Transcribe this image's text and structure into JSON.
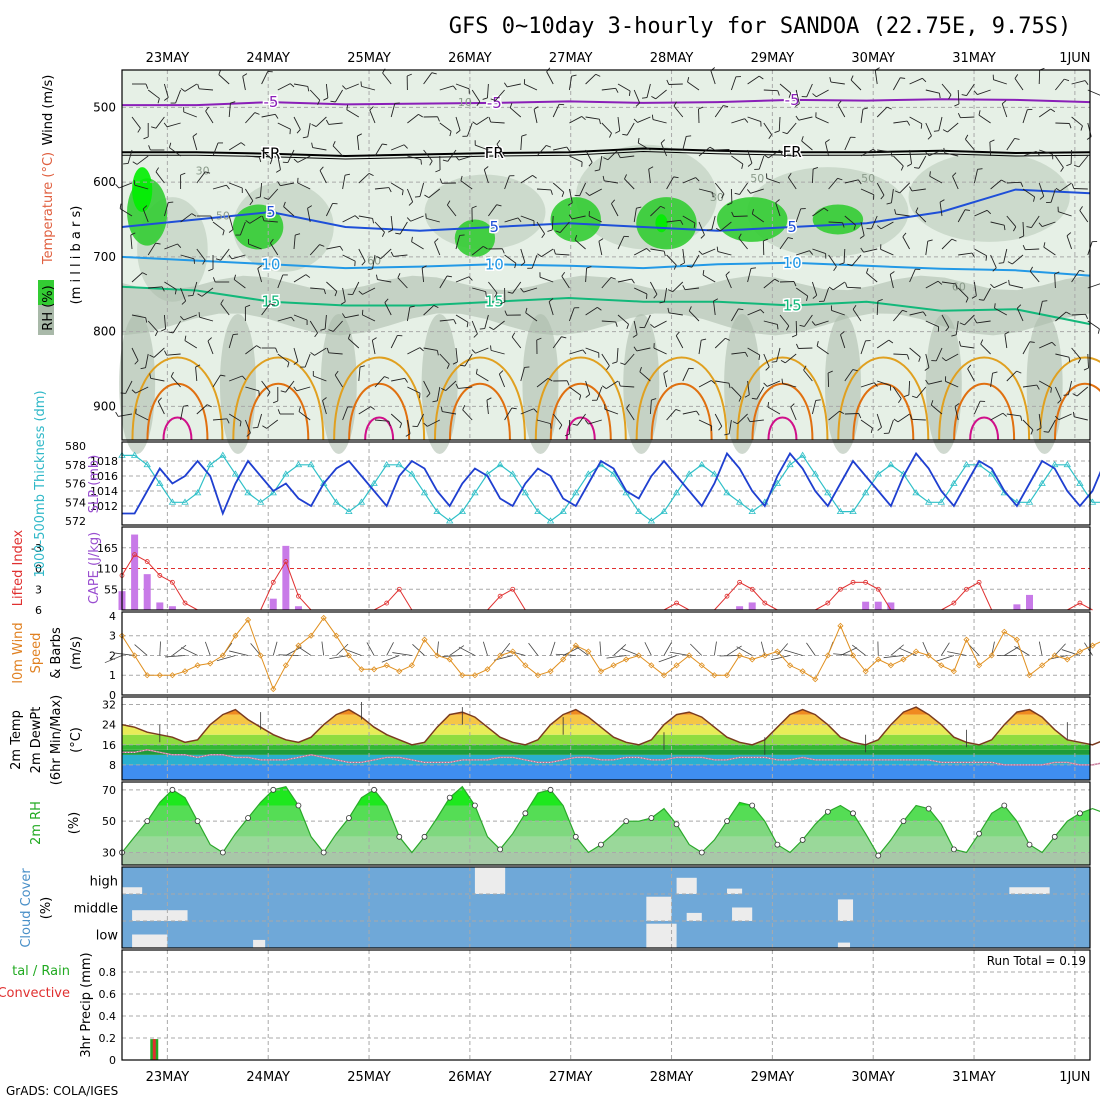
{
  "title": "GFS 0~10day 3-hourly for SANDOA (22.75E, 9.75S)",
  "credit": "GrADS: COLA/IGES",
  "colors": {
    "frame": "#000000",
    "grid": "#a9a9a9",
    "rh_dark": "#a9b9a9",
    "rh_mid": "#c9d7c9",
    "rh_light": "#e6f0e6",
    "rh_green": "#33cc33",
    "rh_bright": "#00ee00",
    "t_neg5": "#8a1fb8",
    "t_fr": "#000000",
    "t_5": "#1e4fd8",
    "t_10": "#2399e6",
    "t_15": "#12b87a",
    "t_20": "#e0a020",
    "t_25": "#e07010",
    "t_30": "#d0108a",
    "slp": "#1f3fd0",
    "thick": "#30c0c8",
    "cape": "#c87ae8",
    "li": "#e03030",
    "wind10": "#e09020",
    "temp_line": "#7a3b1f",
    "dew_line": "#c87a9a",
    "rh_line": "#2aa82a",
    "cloud": "#6fa8d8",
    "precip_total": "#22aa22",
    "precip_conv": "#e03030",
    "lbl_wind": "#000000",
    "lbl_temp": "#e06040",
    "lbl_rh": "#22aa22",
    "lbl_purple": "#9a4fd0",
    "lbl_cyan": "#30b8c8",
    "lbl_orange": "#e08020",
    "lbl_red": "#e03030",
    "lbl_green": "#22aa22",
    "lbl_blue": "#4a90c8"
  },
  "chart_data": {
    "type": "meteogram",
    "dates_top": [
      "23MAY",
      "24MAY",
      "25MAY",
      "26MAY",
      "27MAY",
      "28MAY",
      "29MAY",
      "30MAY",
      "31MAY",
      "1JUN"
    ],
    "dates_bottom": [
      "23MAY",
      "24MAY",
      "25MAY",
      "26MAY",
      "27MAY",
      "28MAY",
      "29MAY",
      "30MAY",
      "31MAY",
      "1JUN"
    ],
    "time_range_days": [
      0,
      9.6
    ],
    "date_positions_days": [
      0.45,
      1.45,
      2.45,
      3.45,
      4.45,
      5.45,
      6.45,
      7.45,
      8.45,
      9.45
    ],
    "cross_section": {
      "ylabel_parts": [
        "RH (%)",
        "Temperature (°C)",
        "Wind (m/s)"
      ],
      "ylabel_sub": "(m i l l i b a r s)",
      "pressure_ticks": [
        "500",
        "600",
        "700",
        "800",
        "900"
      ],
      "pressure_range": [
        450,
        945
      ],
      "contours": [
        {
          "label": "-5",
          "key": "t_neg5",
          "p": [
            497,
            497,
            493,
            496,
            495,
            494,
            492,
            494,
            493,
            490,
            491,
            489,
            490,
            493
          ]
        },
        {
          "label": "FR",
          "key": "t_fr",
          "p": [
            560,
            560,
            562,
            565,
            563,
            561,
            560,
            555,
            558,
            560,
            560,
            558,
            561,
            560
          ]
        },
        {
          "label": "5",
          "key": "t_5",
          "p": [
            660,
            650,
            640,
            660,
            665,
            660,
            655,
            660,
            665,
            660,
            655,
            640,
            610,
            615
          ]
        },
        {
          "label": "10",
          "key": "t_10",
          "p": [
            700,
            705,
            710,
            715,
            713,
            710,
            712,
            715,
            710,
            708,
            712,
            716,
            718,
            725
          ]
        },
        {
          "label": "15",
          "key": "t_15",
          "p": [
            740,
            745,
            760,
            765,
            765,
            760,
            755,
            760,
            760,
            765,
            760,
            772,
            770,
            790
          ]
        }
      ],
      "rh_labels": [
        "10",
        "30",
        "50",
        "60",
        "50",
        "30",
        "50",
        "60"
      ]
    },
    "slp_thickness": {
      "ylabel_left": "1000-500mb Thickness (dm)",
      "ylabel_right": "SLP (mb)",
      "thick_ticks": [
        "580",
        "578",
        "576",
        "574",
        "572"
      ],
      "slp_ticks": [
        "1018",
        "1016",
        "1014",
        "1012"
      ],
      "slp_range": [
        1010,
        1020
      ],
      "slp": [
        1011,
        1011,
        1014,
        1017,
        1015,
        1016,
        1018,
        1016,
        1011,
        1015,
        1018,
        1016,
        1014,
        1015,
        1013,
        1012,
        1015,
        1017,
        1018,
        1016,
        1014,
        1012,
        1016,
        1018,
        1017,
        1014,
        1012,
        1015,
        1017,
        1016,
        1013,
        1012,
        1015,
        1017,
        1016,
        1013,
        1012,
        1015,
        1018,
        1017,
        1014,
        1013,
        1016,
        1018,
        1016,
        1014,
        1012,
        1015,
        1019,
        1017,
        1014,
        1012,
        1016,
        1019,
        1017,
        1014,
        1012,
        1015,
        1018,
        1016,
        1014,
        1012,
        1016,
        1019,
        1017,
        1014,
        1012,
        1015,
        1018,
        1017,
        1014,
        1012,
        1015,
        1018,
        1017,
        1014,
        1012,
        1014,
        1018
      ],
      "thick": [
        579,
        579,
        578,
        576,
        574,
        574,
        575,
        578,
        579,
        577,
        575,
        574,
        575,
        577,
        578,
        578,
        576,
        574,
        573,
        574,
        576,
        578,
        578,
        577,
        575,
        573,
        572,
        573,
        575,
        577,
        578,
        577,
        575,
        573,
        572,
        573,
        575,
        577,
        578,
        577,
        575,
        573,
        572,
        573,
        575,
        577,
        578,
        577,
        575,
        574,
        573,
        574,
        576,
        578,
        579,
        577,
        575,
        573,
        573,
        575,
        577,
        578,
        577,
        575,
        574,
        574,
        576,
        578,
        578,
        577,
        575,
        574,
        574,
        576,
        578,
        578,
        576,
        574,
        574
      ]
    },
    "cape_li": {
      "ylabel_left": "Lifted Index",
      "ylabel_right": "CAPE (J/kg)",
      "li_ticks": [
        "-3",
        "0",
        "3",
        "6"
      ],
      "cape_ticks": [
        "165",
        "110",
        "55"
      ],
      "cape": [
        50,
        200,
        95,
        20,
        10,
        0,
        0,
        0,
        0,
        0,
        0,
        0,
        30,
        170,
        10,
        0,
        0,
        0,
        0,
        0,
        0,
        0,
        0,
        0,
        0,
        0,
        0,
        0,
        0,
        0,
        0,
        0,
        0,
        0,
        0,
        0,
        0,
        0,
        0,
        0,
        0,
        0,
        0,
        0,
        0,
        0,
        0,
        0,
        0,
        10,
        20,
        0,
        0,
        0,
        0,
        0,
        0,
        0,
        0,
        22,
        22,
        20,
        0,
        0,
        0,
        0,
        0,
        0,
        0,
        0,
        0,
        15,
        40,
        0,
        0,
        0,
        0,
        0,
        0
      ],
      "li": [
        1,
        -2,
        -1,
        1,
        2,
        5,
        6,
        6,
        6,
        6,
        6,
        6,
        2,
        -1,
        4,
        6,
        6,
        6,
        6,
        6,
        6,
        5,
        3,
        6,
        6,
        6,
        6,
        6,
        6,
        6,
        4,
        3,
        6,
        6,
        6,
        6,
        6,
        6,
        6,
        6,
        6,
        6,
        6,
        6,
        5,
        6,
        6,
        6,
        4,
        2,
        3,
        5,
        6,
        6,
        6,
        6,
        5,
        3,
        2,
        2,
        3,
        6,
        6,
        6,
        6,
        6,
        5,
        3,
        2,
        6,
        6,
        6,
        6,
        6,
        6,
        6,
        5,
        6,
        6
      ]
    },
    "wind10": {
      "ylabel": "10m Wind Speed & Barbs (m/s)",
      "ticks": [
        "4",
        "3",
        "2",
        "1",
        "0"
      ],
      "speed": [
        3,
        2,
        1,
        1,
        1,
        1.2,
        1.5,
        1.6,
        2,
        3,
        3.8,
        2,
        0.3,
        1.5,
        2.5,
        3,
        3.9,
        3,
        2,
        1.3,
        1.3,
        1.5,
        1.2,
        1.5,
        2.8,
        2,
        1.8,
        1,
        1,
        1.3,
        2,
        2.2,
        1.5,
        1,
        1.2,
        1.8,
        2.5,
        2.2,
        1.2,
        1.5,
        1.8,
        2,
        1.5,
        1,
        1.5,
        2,
        1.5,
        1,
        1,
        2,
        1.8,
        2,
        2.2,
        1.5,
        1.2,
        0.8,
        2,
        3.5,
        2,
        1.2,
        1.8,
        1.5,
        1.8,
        2.2,
        2,
        1.5,
        1.2,
        2.8,
        1.5,
        2,
        3.2,
        2.8,
        1,
        1.5,
        2,
        1.8,
        2.2,
        2.5,
        2.8
      ]
    },
    "temp2m": {
      "ylabel": "2m Temp 2m DewPt (6hr Min/Max) (°C)",
      "ticks": [
        "32",
        "24",
        "16",
        "8"
      ],
      "temp": [
        24,
        23,
        21,
        20,
        19,
        17,
        18,
        24,
        28,
        30,
        26,
        23,
        20,
        18,
        17,
        19,
        24,
        28,
        30,
        27,
        23,
        20,
        18,
        16,
        17,
        23,
        28,
        29,
        27,
        23,
        19,
        17,
        16,
        18,
        24,
        28,
        30,
        27,
        23,
        19,
        17,
        16,
        18,
        24,
        28,
        29,
        27,
        23,
        19,
        17,
        16,
        18,
        23,
        28,
        30,
        28,
        24,
        19,
        17,
        16,
        18,
        24,
        29,
        31,
        28,
        24,
        19,
        17,
        16,
        18,
        24,
        29,
        30,
        27,
        22,
        18,
        17,
        16,
        18
      ],
      "dew": [
        13,
        13,
        14,
        13,
        12,
        12,
        11,
        12,
        12,
        11,
        11,
        10,
        10,
        10,
        11,
        12,
        11,
        10,
        9,
        9,
        10,
        11,
        11,
        10,
        9,
        9,
        9,
        10,
        10,
        10,
        11,
        11,
        10,
        9,
        9,
        10,
        11,
        11,
        10,
        10,
        11,
        11,
        10,
        10,
        11,
        11,
        11,
        10,
        10,
        11,
        11,
        11,
        10,
        10,
        11,
        10,
        10,
        10,
        10,
        10,
        10,
        10,
        10,
        10,
        10,
        9,
        9,
        9,
        9,
        9,
        8,
        8,
        8,
        8,
        9,
        9,
        8,
        8,
        9
      ]
    },
    "rh2m": {
      "ylabel": "2m RH (%)",
      "ticks": [
        "70",
        "50",
        "30"
      ],
      "rh": [
        30,
        40,
        50,
        62,
        70,
        65,
        50,
        35,
        30,
        42,
        52,
        62,
        70,
        72,
        60,
        40,
        30,
        42,
        52,
        65,
        70,
        60,
        40,
        30,
        40,
        52,
        65,
        72,
        60,
        40,
        32,
        42,
        55,
        68,
        70,
        60,
        40,
        30,
        35,
        42,
        50,
        50,
        52,
        58,
        48,
        35,
        30,
        38,
        50,
        62,
        60,
        50,
        35,
        30,
        38,
        48,
        56,
        60,
        55,
        42,
        28,
        38,
        50,
        60,
        58,
        48,
        32,
        30,
        42,
        55,
        60,
        50,
        35,
        30,
        40,
        50,
        55,
        58,
        55
      ]
    },
    "cloud": {
      "ylabel": "Cloud Cover (%)",
      "levels": [
        "high",
        "middle",
        "low"
      ]
    },
    "precip": {
      "ylabel_left": "Total / Rain",
      "ylabel_conv": "Convective",
      "ylabel": "3hr Precip (mm)",
      "ticks": [
        "0.8",
        "0.6",
        "0.4",
        "0.2",
        "0"
      ],
      "run_total": "Run Total = 0.19",
      "bars": [
        {
          "day": 0.32,
          "value": 0.19
        }
      ]
    }
  }
}
